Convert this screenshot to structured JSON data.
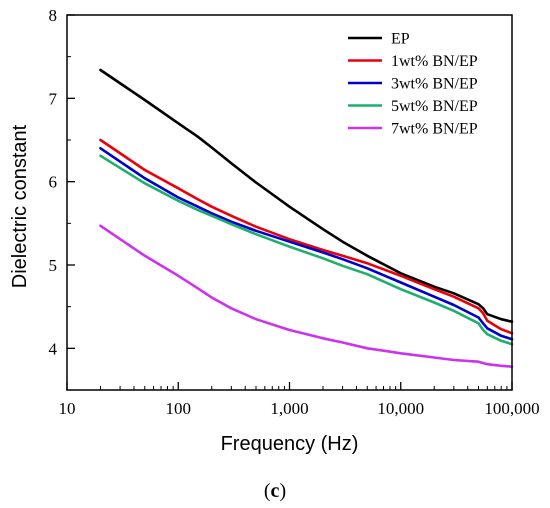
{
  "chart_data": {
    "type": "line",
    "xlabel": "Frequency (Hz)",
    "ylabel": "Dielectric constant",
    "x_scale": "log",
    "xlim": [
      10,
      100000
    ],
    "ylim": [
      3.5,
      8
    ],
    "x_ticks": [
      {
        "value": 10,
        "label": "10"
      },
      {
        "value": 100,
        "label": "100"
      },
      {
        "value": 1000,
        "label": "1,000"
      },
      {
        "value": 10000,
        "label": "10,000"
      },
      {
        "value": 100000,
        "label": "100,000"
      }
    ],
    "y_ticks": [
      {
        "value": 4,
        "label": "4"
      },
      {
        "value": 5,
        "label": "5"
      },
      {
        "value": 6,
        "label": "6"
      },
      {
        "value": 7,
        "label": "7"
      },
      {
        "value": 8,
        "label": "8"
      }
    ],
    "legend_position": "top-right",
    "grid": false,
    "series": [
      {
        "name": "EP",
        "color": "#000000",
        "x": [
          20,
          50,
          100,
          150,
          200,
          300,
          500,
          1000,
          2000,
          3000,
          5000,
          10000,
          20000,
          30000,
          50000,
          55000,
          60000,
          80000,
          100000
        ],
        "y": [
          7.34,
          6.98,
          6.7,
          6.54,
          6.41,
          6.22,
          5.99,
          5.7,
          5.43,
          5.28,
          5.11,
          4.9,
          4.74,
          4.66,
          4.53,
          4.48,
          4.41,
          4.35,
          4.32
        ]
      },
      {
        "name": "1wt% BN/EP",
        "color": "#e8000b",
        "x": [
          20,
          50,
          100,
          150,
          200,
          300,
          500,
          1000,
          2000,
          3000,
          5000,
          10000,
          20000,
          30000,
          50000,
          55000,
          60000,
          80000,
          100000
        ],
        "y": [
          6.5,
          6.14,
          5.92,
          5.79,
          5.7,
          5.59,
          5.46,
          5.31,
          5.18,
          5.11,
          5.02,
          4.87,
          4.71,
          4.62,
          4.48,
          4.42,
          4.33,
          4.23,
          4.18
        ]
      },
      {
        "name": "3wt% BN/EP",
        "color": "#0000cc",
        "x": [
          20,
          50,
          100,
          150,
          200,
          300,
          500,
          1000,
          2000,
          3000,
          5000,
          10000,
          20000,
          30000,
          50000,
          55000,
          60000,
          80000,
          100000
        ],
        "y": [
          6.4,
          6.04,
          5.81,
          5.7,
          5.62,
          5.52,
          5.41,
          5.28,
          5.15,
          5.07,
          4.96,
          4.79,
          4.62,
          4.52,
          4.37,
          4.3,
          4.24,
          4.15,
          4.11
        ]
      },
      {
        "name": "5wt% BN/EP",
        "color": "#1fae6e",
        "x": [
          20,
          50,
          100,
          150,
          200,
          300,
          500,
          1000,
          2000,
          3000,
          5000,
          10000,
          20000,
          30000,
          50000,
          55000,
          60000,
          80000,
          100000
        ],
        "y": [
          6.31,
          5.98,
          5.77,
          5.66,
          5.59,
          5.49,
          5.37,
          5.22,
          5.08,
          4.99,
          4.89,
          4.71,
          4.55,
          4.45,
          4.3,
          4.22,
          4.17,
          4.09,
          4.05
        ]
      },
      {
        "name": "7wt% BN/EP",
        "color": "#cc33ee",
        "x": [
          20,
          50,
          100,
          150,
          200,
          300,
          500,
          1000,
          2000,
          3000,
          5000,
          10000,
          20000,
          30000,
          50000,
          60000,
          80000,
          100000
        ],
        "y": [
          5.47,
          5.11,
          4.87,
          4.72,
          4.61,
          4.48,
          4.35,
          4.22,
          4.12,
          4.07,
          4.0,
          3.94,
          3.89,
          3.86,
          3.84,
          3.81,
          3.79,
          3.78
        ]
      }
    ]
  },
  "panel_label": {
    "open": "(",
    "letter": "c",
    "close": ")"
  }
}
